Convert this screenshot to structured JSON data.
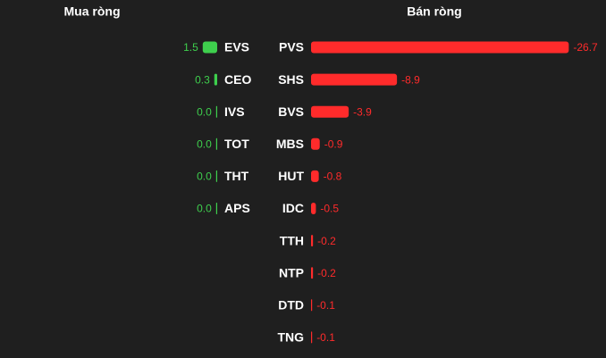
{
  "chart_data": [
    {
      "type": "bar",
      "title": "Mua ròng",
      "categories": [
        "EVS",
        "CEO",
        "IVS",
        "TOT",
        "THT",
        "APS"
      ],
      "values": [
        1.5,
        0.3,
        0,
        0,
        0,
        0
      ],
      "value_labels": [
        "1.5",
        "0.3",
        "0.0",
        "0.0",
        "0.0",
        "0.0"
      ],
      "color": "#3ecf4d"
    },
    {
      "type": "bar",
      "title": "Bán ròng",
      "categories": [
        "PVS",
        "SHS",
        "BVS",
        "MBS",
        "HUT",
        "IDC",
        "TTH",
        "NTP",
        "DTD",
        "TNG"
      ],
      "values": [
        -26.7,
        -8.9,
        -3.9,
        -0.9,
        -0.8,
        -0.5,
        -0.2,
        -0.2,
        -0.1,
        -0.1
      ],
      "color": "#ff2b2b"
    }
  ]
}
